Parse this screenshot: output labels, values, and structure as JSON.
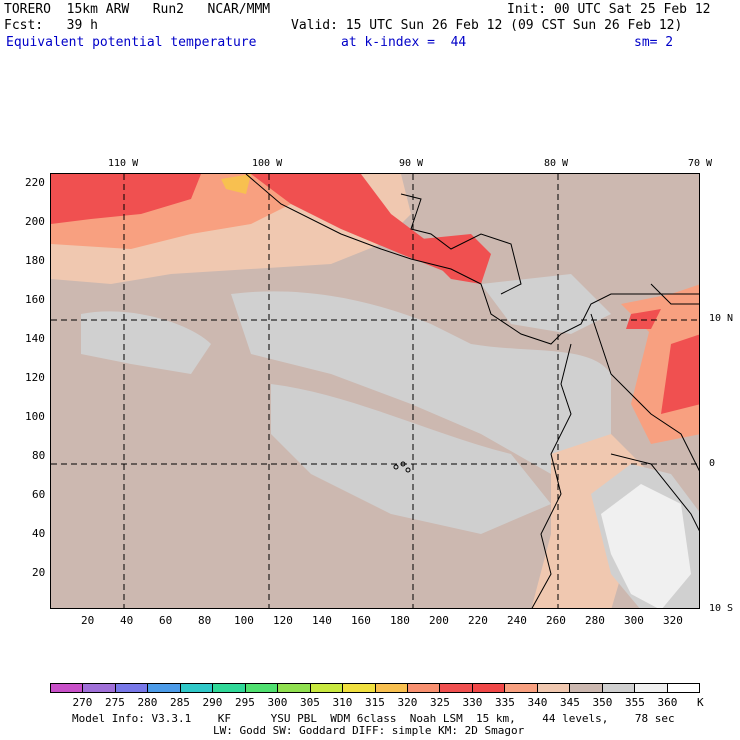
{
  "header": {
    "model": "TORERO  15km ARW   Run2   NCAR/MMM",
    "init": "Init: 00 UTC Sat 25 Feb 12",
    "fcst": "Fcst:   39 h",
    "valid": "Valid: 15 UTC Sun 26 Feb 12 (09 CST Sun 26 Feb 12)",
    "field": "Equivalent potential temperature",
    "level": "at k-index =  44",
    "smooth": "sm= 2"
  },
  "lon_labels": [
    "110 W",
    "100 W",
    "90 W",
    "80 W",
    "70 W"
  ],
  "lat_labels": [
    "10 N",
    "0",
    "10 S"
  ],
  "y_ticks": [
    "220",
    "200",
    "180",
    "160",
    "140",
    "120",
    "100",
    "80",
    "60",
    "40",
    "20"
  ],
  "x_ticks": [
    "20",
    "40",
    "60",
    "80",
    "100",
    "120",
    "140",
    "160",
    "180",
    "200",
    "220",
    "240",
    "260",
    "280",
    "300",
    "320"
  ],
  "colorbar": {
    "labels": [
      "270",
      "275",
      "280",
      "285",
      "290",
      "295",
      "300",
      "305",
      "310",
      "315",
      "320",
      "325",
      "330",
      "335",
      "340",
      "345",
      "350",
      "355",
      "360"
    ],
    "unit": "K",
    "colors": [
      "#c850c8",
      "#a070d8",
      "#7878e8",
      "#4c9be8",
      "#30c8c8",
      "#30d898",
      "#50e070",
      "#90e050",
      "#c8e840",
      "#f0e040",
      "#f8c050",
      "#f89070",
      "#f05050",
      "#f04848",
      "#f8a080",
      "#f0c8b0",
      "#ccb8b0",
      "#d0d0d0",
      "#f0f0f0",
      "#ffffff"
    ]
  },
  "footer": {
    "line1": "Model Info: V3.3.1    KF      YSU PBL  WDM 6class  Noah LSM  15 km,    44 levels,    78 sec",
    "line2": "LW: Godd SW: Goddard DIFF: simple KM: 2D Smagor"
  }
}
